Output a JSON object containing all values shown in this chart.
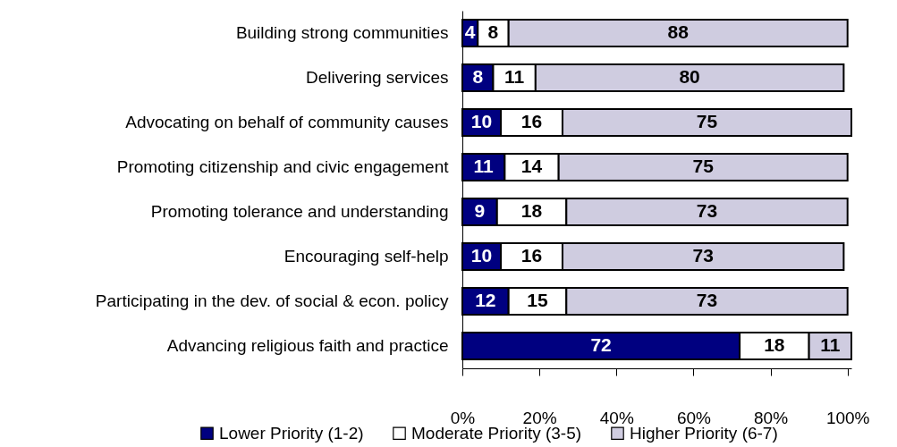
{
  "chart_data": {
    "type": "bar",
    "orientation": "horizontal",
    "stacked": true,
    "data_labels": true,
    "grid": false,
    "legend": "bottom",
    "categories": [
      "Building strong communities",
      "Delivering services",
      "Advocating on behalf of community causes",
      "Promoting citizenship and civic engagement",
      "Promoting tolerance and understanding",
      "Encouraging self-help",
      "Participating in the dev. of social & econ. policy",
      "Advancing religious faith and practice"
    ],
    "series": [
      {
        "name": "Lower Priority (1-2)",
        "color": "#000080",
        "values": [
          4,
          8,
          10,
          11,
          9,
          10,
          12,
          72
        ]
      },
      {
        "name": "Moderate Priority (3-5)",
        "color": "#ffffff",
        "values": [
          8,
          11,
          16,
          14,
          18,
          16,
          15,
          18
        ]
      },
      {
        "name": "Higher Priority (6-7)",
        "color": "#cfcce0",
        "values": [
          88,
          80,
          75,
          75,
          73,
          73,
          73,
          11
        ]
      }
    ],
    "xlim": [
      0,
      101
    ],
    "xticks": [
      {
        "value": 0,
        "label": "0%"
      },
      {
        "value": 20,
        "label": "20%"
      },
      {
        "value": 40,
        "label": "40%"
      },
      {
        "value": 60,
        "label": "60%"
      },
      {
        "value": 80,
        "label": "80%"
      },
      {
        "value": 100,
        "label": "100%"
      }
    ]
  }
}
